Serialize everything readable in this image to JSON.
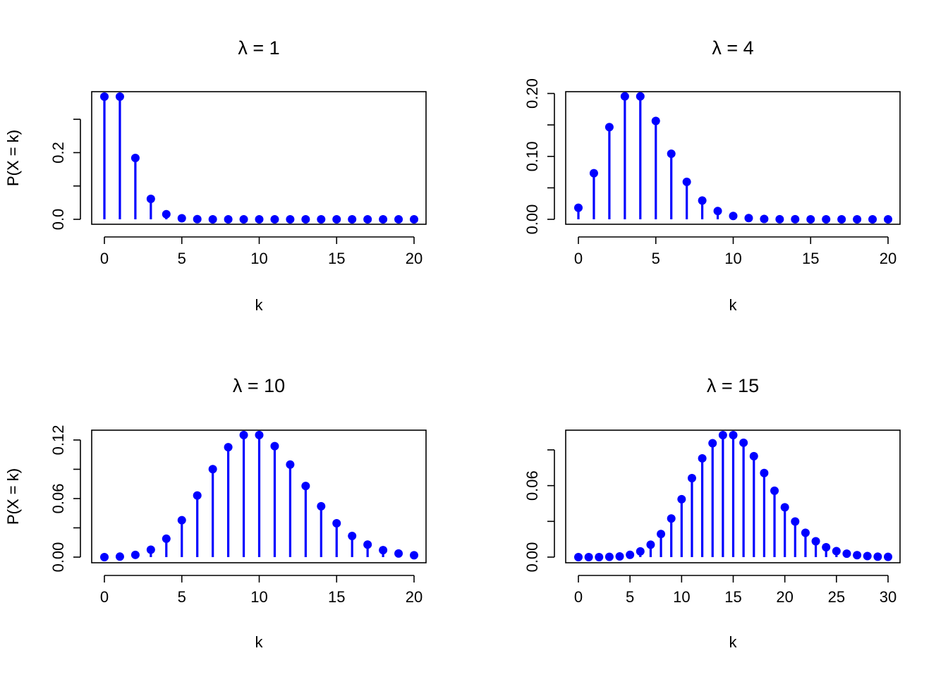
{
  "colors": {
    "accent": "#0000ff",
    "axis": "#000000"
  },
  "chart_data": [
    {
      "type": "lollipop",
      "title": "λ = 1",
      "xlabel": "k",
      "ylabel": "P(X = k)",
      "xlim": [
        0,
        20
      ],
      "ylim": [
        0,
        0.368
      ],
      "xticks": [
        0,
        5,
        10,
        15,
        20
      ],
      "yticks": [
        0.0,
        0.1,
        0.2,
        0.3
      ],
      "ytick_labels": [
        "0.0",
        "",
        "0.2",
        ""
      ],
      "x": [
        0,
        1,
        2,
        3,
        4,
        5,
        6,
        7,
        8,
        9,
        10,
        11,
        12,
        13,
        14,
        15,
        16,
        17,
        18,
        19,
        20
      ],
      "values": [
        0.3679,
        0.3679,
        0.1839,
        0.0613,
        0.0153,
        0.0031,
        0.0005,
        0.0001,
        0,
        0,
        0,
        0,
        0,
        0,
        0,
        0,
        0,
        0,
        0,
        0,
        0
      ]
    },
    {
      "type": "lollipop",
      "title": "λ = 4",
      "xlabel": "k",
      "ylabel": "P(X = k)",
      "xlim": [
        0,
        20
      ],
      "ylim": [
        0,
        0.195
      ],
      "xticks": [
        0,
        5,
        10,
        15,
        20
      ],
      "yticks": [
        0.0,
        0.05,
        0.1,
        0.15,
        0.2
      ],
      "ytick_labels": [
        "0.00",
        "",
        "0.10",
        "",
        "0.20"
      ],
      "x": [
        0,
        1,
        2,
        3,
        4,
        5,
        6,
        7,
        8,
        9,
        10,
        11,
        12,
        13,
        14,
        15,
        16,
        17,
        18,
        19,
        20
      ],
      "values": [
        0.0183,
        0.0733,
        0.1465,
        0.1954,
        0.1954,
        0.1563,
        0.1042,
        0.0595,
        0.0298,
        0.0132,
        0.0053,
        0.0019,
        0.0006,
        0.0002,
        0.0001,
        0,
        0,
        0,
        0,
        0,
        0
      ]
    },
    {
      "type": "lollipop",
      "title": "λ = 10",
      "xlabel": "k",
      "ylabel": "P(X = k)",
      "xlim": [
        0,
        20
      ],
      "ylim": [
        0,
        0.125
      ],
      "xticks": [
        0,
        5,
        10,
        15,
        20
      ],
      "yticks": [
        0.0,
        0.03,
        0.06,
        0.09,
        0.12
      ],
      "ytick_labels": [
        "0.00",
        "",
        "0.06",
        "",
        "0.12"
      ],
      "x": [
        0,
        1,
        2,
        3,
        4,
        5,
        6,
        7,
        8,
        9,
        10,
        11,
        12,
        13,
        14,
        15,
        16,
        17,
        18,
        19,
        20
      ],
      "values": [
        0.0,
        0.0005,
        0.0023,
        0.0076,
        0.0189,
        0.0378,
        0.0631,
        0.0901,
        0.1126,
        0.1251,
        0.1251,
        0.1137,
        0.0948,
        0.0729,
        0.0521,
        0.0347,
        0.0217,
        0.0128,
        0.0071,
        0.0037,
        0.0019
      ]
    },
    {
      "type": "lollipop",
      "title": "λ = 15",
      "xlabel": "k",
      "ylabel": "P(X = k)",
      "xlim": [
        0,
        30
      ],
      "ylim": [
        0,
        0.1024
      ],
      "xticks": [
        0,
        5,
        10,
        15,
        20,
        25,
        30
      ],
      "yticks": [
        0.0,
        0.03,
        0.06,
        0.09
      ],
      "ytick_labels": [
        "0.00",
        "",
        "0.06",
        ""
      ],
      "x": [
        0,
        1,
        2,
        3,
        4,
        5,
        6,
        7,
        8,
        9,
        10,
        11,
        12,
        13,
        14,
        15,
        16,
        17,
        18,
        19,
        20,
        21,
        22,
        23,
        24,
        25,
        26,
        27,
        28,
        29,
        30
      ],
      "values": [
        0.0,
        0.0,
        0.0,
        0.0002,
        0.0006,
        0.0019,
        0.0048,
        0.0104,
        0.0194,
        0.0324,
        0.0486,
        0.0663,
        0.0829,
        0.0956,
        0.1024,
        0.1024,
        0.096,
        0.0847,
        0.0706,
        0.0557,
        0.0418,
        0.0299,
        0.0204,
        0.0133,
        0.0083,
        0.005,
        0.0029,
        0.0016,
        0.0009,
        0.0004,
        0.0002
      ]
    }
  ]
}
